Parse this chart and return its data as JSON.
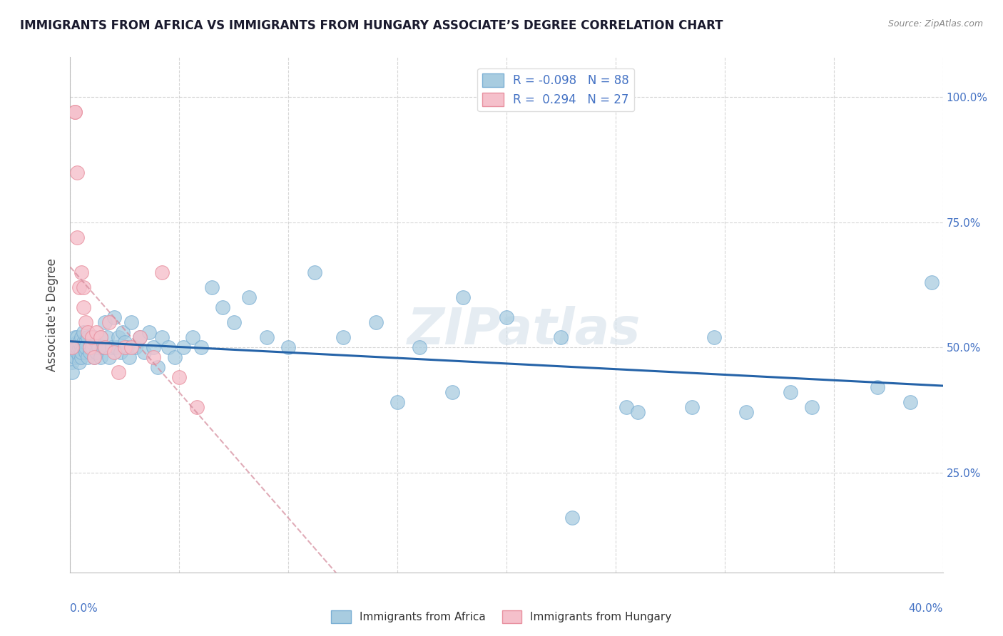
{
  "title": "IMMIGRANTS FROM AFRICA VS IMMIGRANTS FROM HUNGARY ASSOCIATE’S DEGREE CORRELATION CHART",
  "source": "Source: ZipAtlas.com",
  "ylabel": "Associate's Degree",
  "xlim": [
    0.0,
    0.4
  ],
  "ylim": [
    0.05,
    1.08
  ],
  "legend_r_africa": "-0.098",
  "legend_n_africa": "88",
  "legend_r_hungary": "0.294",
  "legend_n_hungary": "27",
  "africa_color": "#a8cce0",
  "africa_edge_color": "#7bafd4",
  "hungary_color": "#f5c0cb",
  "hungary_edge_color": "#e8909f",
  "africa_trend_color": "#2563a8",
  "hungary_trend_color": "#d4899a",
  "background_color": "#ffffff",
  "watermark": "ZIPatlas",
  "grid_color": "#cccccc",
  "right_tick_color": "#4472c4",
  "africa_x": [
    0.001,
    0.001,
    0.002,
    0.002,
    0.002,
    0.003,
    0.003,
    0.003,
    0.003,
    0.004,
    0.004,
    0.004,
    0.004,
    0.005,
    0.005,
    0.005,
    0.005,
    0.006,
    0.006,
    0.006,
    0.007,
    0.007,
    0.007,
    0.008,
    0.008,
    0.009,
    0.009,
    0.01,
    0.01,
    0.011,
    0.011,
    0.012,
    0.012,
    0.013,
    0.014,
    0.014,
    0.015,
    0.016,
    0.017,
    0.018,
    0.019,
    0.02,
    0.021,
    0.022,
    0.023,
    0.024,
    0.025,
    0.026,
    0.027,
    0.028,
    0.03,
    0.032,
    0.034,
    0.036,
    0.038,
    0.04,
    0.042,
    0.045,
    0.048,
    0.052,
    0.056,
    0.06,
    0.065,
    0.07,
    0.075,
    0.082,
    0.09,
    0.1,
    0.112,
    0.125,
    0.14,
    0.16,
    0.18,
    0.2,
    0.225,
    0.255,
    0.285,
    0.31,
    0.34,
    0.37,
    0.15,
    0.175,
    0.26,
    0.295,
    0.33,
    0.385,
    0.395,
    0.23
  ],
  "africa_y": [
    0.47,
    0.45,
    0.5,
    0.52,
    0.48,
    0.51,
    0.49,
    0.5,
    0.52,
    0.48,
    0.5,
    0.51,
    0.47,
    0.5,
    0.52,
    0.48,
    0.49,
    0.51,
    0.5,
    0.53,
    0.49,
    0.51,
    0.5,
    0.48,
    0.52,
    0.5,
    0.49,
    0.51,
    0.5,
    0.48,
    0.52,
    0.49,
    0.51,
    0.5,
    0.48,
    0.52,
    0.5,
    0.55,
    0.52,
    0.48,
    0.5,
    0.56,
    0.5,
    0.52,
    0.49,
    0.53,
    0.51,
    0.5,
    0.48,
    0.55,
    0.5,
    0.52,
    0.49,
    0.53,
    0.5,
    0.46,
    0.52,
    0.5,
    0.48,
    0.5,
    0.52,
    0.5,
    0.62,
    0.58,
    0.55,
    0.6,
    0.52,
    0.5,
    0.65,
    0.52,
    0.55,
    0.5,
    0.6,
    0.56,
    0.52,
    0.38,
    0.38,
    0.37,
    0.38,
    0.42,
    0.39,
    0.41,
    0.37,
    0.52,
    0.41,
    0.39,
    0.63,
    0.16
  ],
  "hungary_x": [
    0.001,
    0.002,
    0.002,
    0.003,
    0.003,
    0.004,
    0.005,
    0.006,
    0.006,
    0.007,
    0.008,
    0.009,
    0.01,
    0.011,
    0.012,
    0.014,
    0.016,
    0.018,
    0.02,
    0.022,
    0.025,
    0.028,
    0.032,
    0.038,
    0.042,
    0.05,
    0.058
  ],
  "hungary_y": [
    0.5,
    0.97,
    0.97,
    0.85,
    0.72,
    0.62,
    0.65,
    0.58,
    0.62,
    0.55,
    0.53,
    0.5,
    0.52,
    0.48,
    0.53,
    0.52,
    0.5,
    0.55,
    0.49,
    0.45,
    0.5,
    0.5,
    0.52,
    0.48,
    0.65,
    0.44,
    0.38
  ]
}
